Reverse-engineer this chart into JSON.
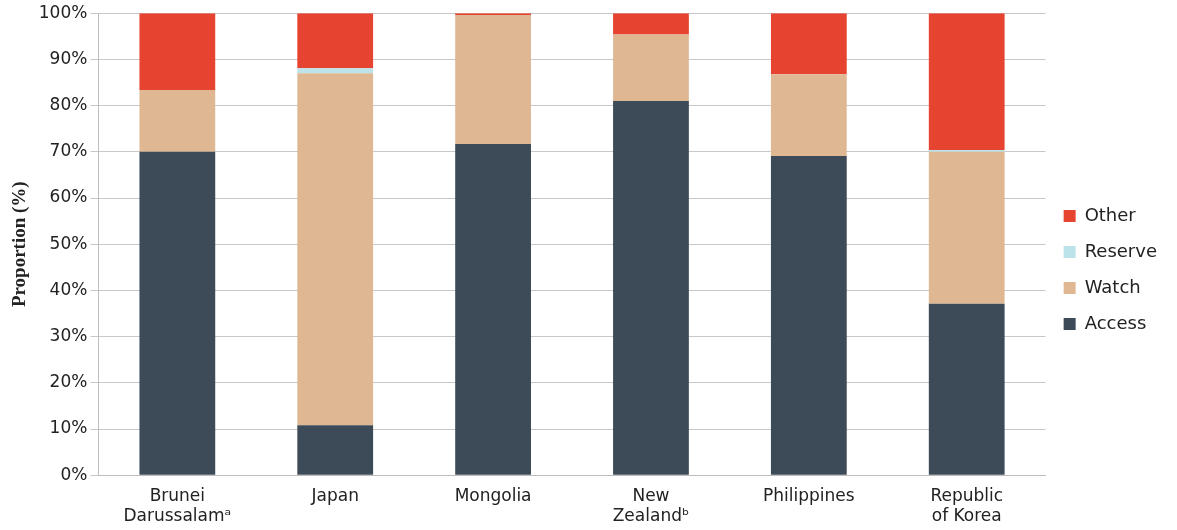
{
  "chart_data": {
    "type": "bar",
    "stacked": true,
    "ylabel": "Proportion (%)",
    "categories": [
      "Brunei Darussalamᵃ",
      "Japan",
      "Mongolia",
      "New Zealandᵇ",
      "Philippines",
      "Republic of Korea"
    ],
    "series": [
      {
        "name": "Access",
        "color": "#3d4a57",
        "values": [
          70.0,
          10.8,
          71.7,
          81.0,
          69.1,
          37.1
        ]
      },
      {
        "name": "Watch",
        "color": "#dfb893",
        "values": [
          13.4,
          76.2,
          27.9,
          14.4,
          17.7,
          32.9
        ]
      },
      {
        "name": "Reserve",
        "color": "#bde3ea",
        "values": [
          0,
          1.1,
          0,
          0,
          0,
          0.4
        ]
      },
      {
        "name": "Other",
        "color": "#e64330",
        "values": [
          16.6,
          11.9,
          0.4,
          4.6,
          13.2,
          29.6
        ]
      }
    ],
    "ylim": [
      0,
      100
    ],
    "yticks": [
      {
        "value": 0,
        "label": "0%"
      },
      {
        "value": 10,
        "label": "10%"
      },
      {
        "value": 20,
        "label": "20%"
      },
      {
        "value": 30,
        "label": "30%"
      },
      {
        "value": 40,
        "label": "40%"
      },
      {
        "value": 50,
        "label": "50%"
      },
      {
        "value": 60,
        "label": "60%"
      },
      {
        "value": 70,
        "label": "70%"
      },
      {
        "value": 80,
        "label": "80%"
      },
      {
        "value": 90,
        "label": "90%"
      },
      {
        "value": 100,
        "label": "100%"
      }
    ],
    "grid": "y",
    "legend": "right"
  }
}
